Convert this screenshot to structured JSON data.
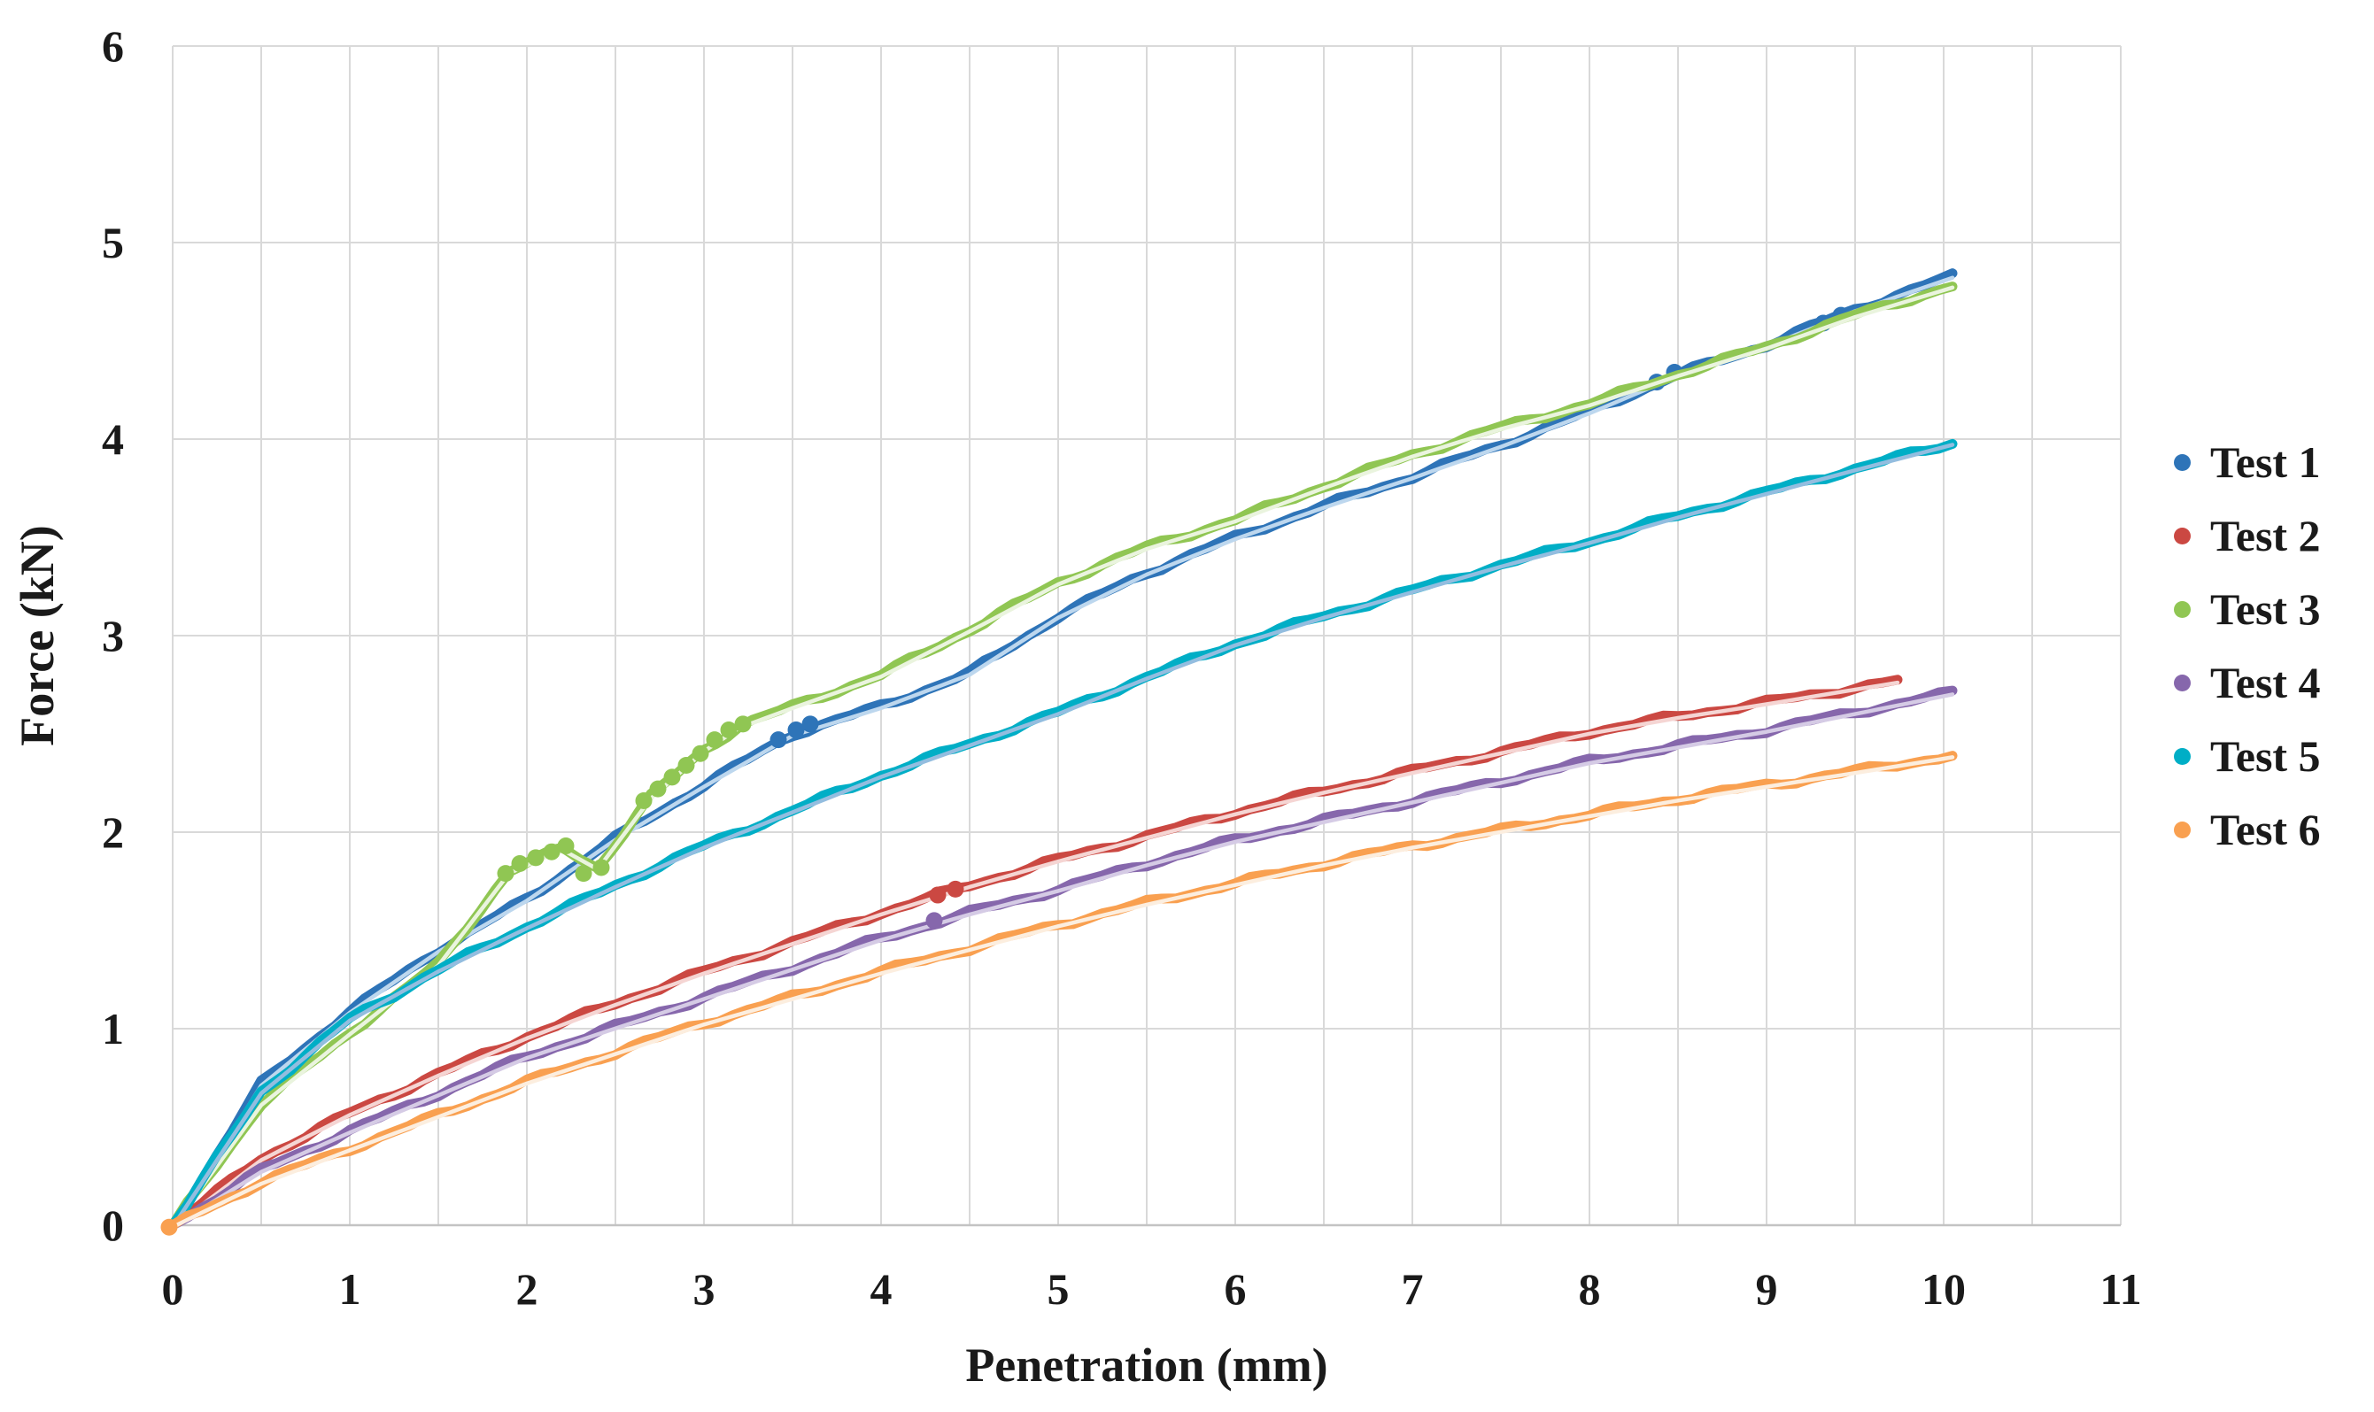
{
  "page": {
    "background": "#FFFFFF"
  },
  "chart_data": {
    "type": "scatter",
    "title": "",
    "xlabel": "Penetration (mm)",
    "ylabel": "Force (kN)",
    "xlim": [
      0,
      11
    ],
    "ylim": [
      0,
      6
    ],
    "x_ticks": [
      0,
      1,
      2,
      3,
      4,
      5,
      6,
      7,
      8,
      9,
      10,
      11
    ],
    "y_ticks": [
      0,
      1,
      2,
      3,
      4,
      5,
      6
    ],
    "x_grid_interval": 0.5,
    "y_grid_interval": 1,
    "grid": "on",
    "grid_color": "#D9D9D9",
    "axis_line_color": "#C3C3C3",
    "text_color": "#1A1A1A",
    "legend_position": "right",
    "series": [
      {
        "name": "Test 1",
        "color": "#2E74B8",
        "core_color": "#BDD7EE",
        "points": [
          [
            0,
            0
          ],
          [
            0.5,
            0.72
          ],
          [
            1,
            1.09
          ],
          [
            1.5,
            1.4
          ],
          [
            2,
            1.66
          ],
          [
            2.5,
            1.97
          ],
          [
            3,
            2.24
          ],
          [
            3.5,
            2.5
          ],
          [
            4,
            2.64
          ],
          [
            4.5,
            2.81
          ],
          [
            5,
            3.1
          ],
          [
            5.5,
            3.32
          ],
          [
            6,
            3.5
          ],
          [
            6.5,
            3.66
          ],
          [
            7,
            3.81
          ],
          [
            7.5,
            3.97
          ],
          [
            8,
            4.14
          ],
          [
            8.5,
            4.33
          ],
          [
            9,
            4.48
          ],
          [
            9.5,
            4.66
          ],
          [
            10.05,
            4.83
          ]
        ],
        "clusters": [
          [
            3.42,
            2.47
          ],
          [
            3.52,
            2.52
          ],
          [
            3.6,
            2.55
          ],
          [
            8.38,
            4.29
          ],
          [
            8.48,
            4.34
          ],
          [
            9.32,
            4.59
          ],
          [
            9.42,
            4.63
          ]
        ]
      },
      {
        "name": "Test 2",
        "color": "#CB4842",
        "core_color": "#F5D5D3",
        "points": [
          [
            0,
            0
          ],
          [
            0.5,
            0.34
          ],
          [
            1,
            0.57
          ],
          [
            1.5,
            0.77
          ],
          [
            2,
            0.96
          ],
          [
            2.5,
            1.13
          ],
          [
            3,
            1.29
          ],
          [
            3.5,
            1.44
          ],
          [
            4,
            1.59
          ],
          [
            4.5,
            1.73
          ],
          [
            5,
            1.86
          ],
          [
            5.5,
            1.98
          ],
          [
            6,
            2.1
          ],
          [
            6.5,
            2.21
          ],
          [
            7,
            2.31
          ],
          [
            7.5,
            2.41
          ],
          [
            8,
            2.51
          ],
          [
            8.5,
            2.59
          ],
          [
            9,
            2.66
          ],
          [
            9.74,
            2.77
          ]
        ],
        "clusters": [
          [
            4.32,
            1.68
          ],
          [
            4.42,
            1.71
          ]
        ]
      },
      {
        "name": "Test 3",
        "color": "#90C653",
        "core_color": "#EAF4DE",
        "points": [
          [
            0,
            0
          ],
          [
            0.5,
            0.62
          ],
          [
            1,
            0.98
          ],
          [
            1.5,
            1.33
          ],
          [
            1.9,
            1.8
          ],
          [
            2.2,
            1.92
          ],
          [
            2.4,
            1.82
          ],
          [
            2.7,
            2.18
          ],
          [
            3,
            2.42
          ],
          [
            3.2,
            2.54
          ],
          [
            3.5,
            2.64
          ],
          [
            4,
            2.8
          ],
          [
            4.5,
            3.03
          ],
          [
            5,
            3.27
          ],
          [
            5.5,
            3.45
          ],
          [
            6,
            3.59
          ],
          [
            6.5,
            3.76
          ],
          [
            7,
            3.92
          ],
          [
            7.5,
            4.06
          ],
          [
            8,
            4.18
          ],
          [
            8.5,
            4.33
          ],
          [
            9,
            4.47
          ],
          [
            9.5,
            4.63
          ],
          [
            10.05,
            4.78
          ]
        ],
        "clusters": [
          [
            1.88,
            1.79
          ],
          [
            1.96,
            1.84
          ],
          [
            2.05,
            1.87
          ],
          [
            2.14,
            1.9
          ],
          [
            2.22,
            1.93
          ],
          [
            2.32,
            1.79
          ],
          [
            2.42,
            1.82
          ],
          [
            2.66,
            2.16
          ],
          [
            2.74,
            2.22
          ],
          [
            2.82,
            2.28
          ],
          [
            2.9,
            2.34
          ],
          [
            2.98,
            2.4
          ],
          [
            3.06,
            2.47
          ],
          [
            3.14,
            2.52
          ],
          [
            3.22,
            2.55
          ]
        ]
      },
      {
        "name": "Test 4",
        "color": "#8667AC",
        "core_color": "#D5CBE5",
        "points": [
          [
            0,
            0
          ],
          [
            0.5,
            0.28
          ],
          [
            1,
            0.48
          ],
          [
            1.5,
            0.67
          ],
          [
            2,
            0.86
          ],
          [
            2.5,
            1.01
          ],
          [
            3,
            1.16
          ],
          [
            3.5,
            1.31
          ],
          [
            4,
            1.46
          ],
          [
            4.5,
            1.59
          ],
          [
            5,
            1.71
          ],
          [
            5.5,
            1.84
          ],
          [
            6,
            1.96
          ],
          [
            6.5,
            2.06
          ],
          [
            7,
            2.16
          ],
          [
            7.5,
            2.26
          ],
          [
            8,
            2.36
          ],
          [
            8.5,
            2.44
          ],
          [
            9,
            2.52
          ],
          [
            9.5,
            2.61
          ],
          [
            10.05,
            2.71
          ]
        ],
        "clusters": [
          [
            4.3,
            1.55
          ]
        ]
      },
      {
        "name": "Test 5",
        "color": "#00AEC6",
        "core_color": "#93BDDF",
        "points": [
          [
            0,
            0
          ],
          [
            0.5,
            0.68
          ],
          [
            1,
            1.05
          ],
          [
            1.5,
            1.3
          ],
          [
            2,
            1.52
          ],
          [
            2.5,
            1.73
          ],
          [
            3,
            1.93
          ],
          [
            3.5,
            2.11
          ],
          [
            4,
            2.29
          ],
          [
            4.5,
            2.45
          ],
          [
            5,
            2.61
          ],
          [
            5.5,
            2.79
          ],
          [
            6,
            2.96
          ],
          [
            6.5,
            3.1
          ],
          [
            7,
            3.23
          ],
          [
            7.5,
            3.36
          ],
          [
            8,
            3.48
          ],
          [
            8.5,
            3.61
          ],
          [
            9,
            3.73
          ],
          [
            9.5,
            3.85
          ],
          [
            10.05,
            3.98
          ]
        ],
        "clusters": []
      },
      {
        "name": "Test 6",
        "color": "#F9A050",
        "core_color": "#FCEEDF",
        "points": [
          [
            0,
            0
          ],
          [
            0.5,
            0.22
          ],
          [
            1,
            0.39
          ],
          [
            1.5,
            0.56
          ],
          [
            2,
            0.73
          ],
          [
            2.5,
            0.88
          ],
          [
            3,
            1.03
          ],
          [
            3.5,
            1.16
          ],
          [
            4,
            1.29
          ],
          [
            4.5,
            1.41
          ],
          [
            5,
            1.53
          ],
          [
            5.5,
            1.64
          ],
          [
            6,
            1.74
          ],
          [
            6.5,
            1.84
          ],
          [
            7,
            1.93
          ],
          [
            7.5,
            2.01
          ],
          [
            8,
            2.09
          ],
          [
            8.5,
            2.17
          ],
          [
            9,
            2.24
          ],
          [
            9.5,
            2.31
          ],
          [
            10.05,
            2.39
          ]
        ],
        "clusters": [
          [
            -0.02,
            -0.01
          ]
        ]
      }
    ],
    "legend_items": [
      "Test 1",
      "Test 2",
      "Test 3",
      "Test 4",
      "Test 5",
      "Test 6"
    ]
  }
}
